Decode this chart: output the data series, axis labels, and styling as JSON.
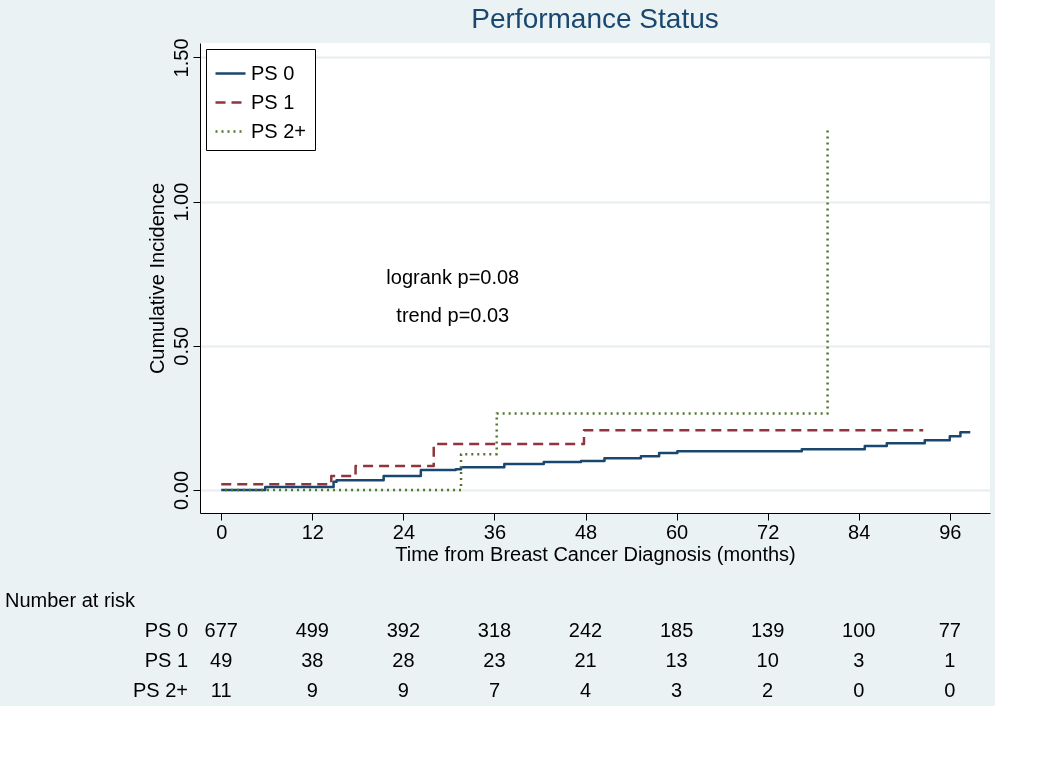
{
  "chart_data": {
    "type": "step",
    "title": "Performance Status",
    "xlabel": "Time from Breast Cancer Diagnosis (months)",
    "ylabel": "Cumulative Incidence",
    "xlim": [
      -2.8,
      101.3
    ],
    "ylim": [
      -0.08,
      1.55
    ],
    "xticks": [
      0,
      12,
      24,
      36,
      48,
      60,
      72,
      84,
      96
    ],
    "yticks": [
      {
        "value": 0,
        "label": "0.00"
      },
      {
        "value": 0.5,
        "label": "0.50"
      },
      {
        "value": 1,
        "label": "1.00"
      },
      {
        "value": 1.5,
        "label": "1.50"
      }
    ],
    "grid": "y",
    "legend": "top left",
    "series": [
      {
        "name": "PS 0",
        "color": "#1a476f",
        "line_style": "solid",
        "x": [
          0,
          5.8,
          14.8,
          15.2,
          21.4,
          26.3,
          30.9,
          31.6,
          37.3,
          42.5,
          47.4,
          50.5,
          55.3,
          57.7,
          60.1,
          76.5,
          84.8,
          87.7,
          92.7,
          96,
          97.4,
          98.7
        ],
        "values": [
          0,
          0.01,
          0.028,
          0.034,
          0.048,
          0.069,
          0.072,
          0.079,
          0.09,
          0.097,
          0.1,
          0.11,
          0.117,
          0.128,
          0.134,
          0.141,
          0.152,
          0.162,
          0.172,
          0.186,
          0.2,
          0.2
        ]
      },
      {
        "name": "PS 1",
        "color": "#90353b",
        "line_style": "dashed",
        "x": [
          0,
          14.5,
          17.7,
          28,
          47.8,
          92.5
        ],
        "values": [
          0.02,
          0.048,
          0.083,
          0.159,
          0.207,
          0.207
        ]
      },
      {
        "name": "PS 2+",
        "color": "#55752f",
        "line_style": "dotted",
        "x": [
          0.5,
          31.6,
          36.3,
          79.9
        ],
        "values": [
          0,
          0.124,
          0.265,
          1.26
        ]
      }
    ],
    "annotations": [
      "logrank p=0.08",
      "trend p=0.03",
      "Number at risk",
      "PS 0",
      "677",
      "499",
      "392",
      "318",
      "242",
      "185",
      "139",
      "100",
      "77",
      "PS 1",
      "49",
      "38",
      "28",
      "23",
      "21",
      "13",
      "10",
      "3",
      "1",
      "PS 2+",
      "11",
      "9",
      "9",
      "7",
      "4",
      "3",
      "2",
      "0",
      "0"
    ]
  }
}
